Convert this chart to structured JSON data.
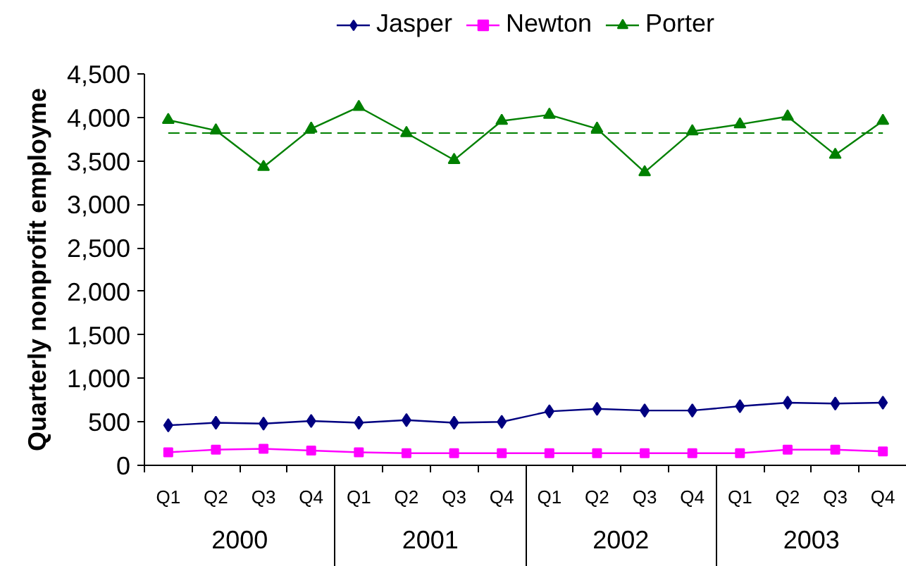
{
  "chart_data": {
    "type": "line",
    "ylabel": "Quarterly nonprofit employme",
    "categories": [
      "Q1",
      "Q2",
      "Q3",
      "Q4",
      "Q1",
      "Q2",
      "Q3",
      "Q4",
      "Q1",
      "Q2",
      "Q3",
      "Q4",
      "Q1",
      "Q2",
      "Q3",
      "Q4"
    ],
    "annotations": [
      "2000",
      "2001",
      "2002",
      "2003"
    ],
    "series": [
      {
        "name": "Jasper",
        "color": "#000080",
        "marker": "diamond",
        "values": [
          460,
          490,
          480,
          510,
          490,
          520,
          490,
          500,
          620,
          650,
          630,
          630,
          680,
          720,
          710,
          720
        ]
      },
      {
        "name": "Newton",
        "color": "#ff00ff",
        "marker": "square",
        "values": [
          150,
          180,
          190,
          170,
          150,
          140,
          140,
          140,
          140,
          140,
          140,
          140,
          140,
          180,
          180,
          160
        ]
      },
      {
        "name": "Porter",
        "color": "#008000",
        "marker": "triangle",
        "values": [
          3970,
          3850,
          3430,
          3870,
          4120,
          3820,
          3510,
          3960,
          4030,
          3870,
          3370,
          3840,
          3920,
          4010,
          3570,
          3960
        ]
      }
    ],
    "ylim": [
      0,
      4500
    ],
    "yticks": [
      0,
      500,
      {
        "value": 1000,
        "label": "1,000"
      },
      {
        "value": 1500,
        "label": "1,500"
      },
      {
        "value": 2000,
        "label": "2,000"
      },
      {
        "value": 2500,
        "label": "2,500"
      },
      {
        "value": 3000,
        "label": "3,000"
      },
      {
        "value": 3500,
        "label": "3,500"
      },
      {
        "value": 4000,
        "label": "4,000"
      },
      {
        "value": 4500,
        "label": "4,500"
      }
    ],
    "ref_lines": [
      {
        "axis": "y",
        "value": 3820,
        "color": "#008000",
        "line_style": "dashed"
      }
    ],
    "grid": false,
    "legend": "top",
    "line_style": "solid"
  }
}
